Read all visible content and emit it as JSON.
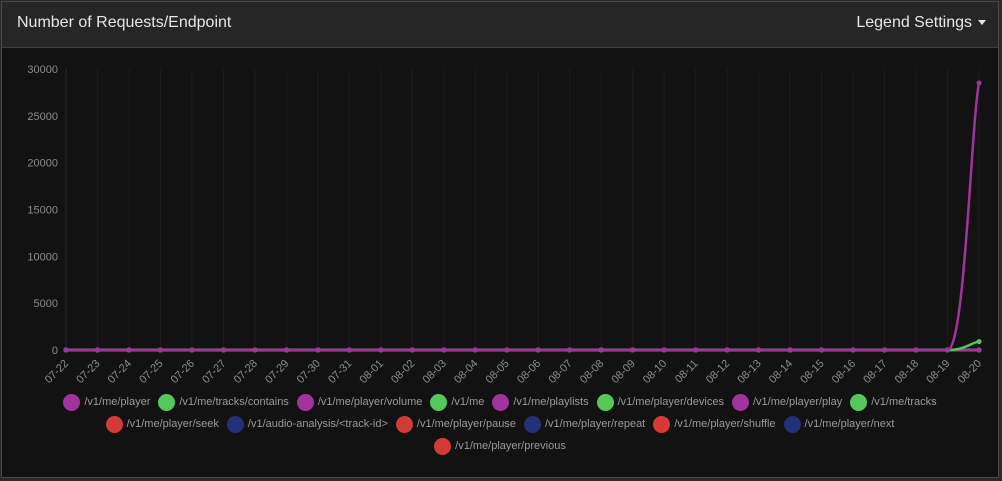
{
  "header": {
    "title": "Number of Requests/Endpoint",
    "legend_settings": "Legend Settings"
  },
  "icons": {
    "legend_caret": "caret-down-icon"
  },
  "colors": {
    "purple": "#a0349c",
    "green": "#55c85a",
    "navy": "#23307a",
    "red": "#d43a36"
  },
  "chart_data": {
    "type": "line",
    "x": [
      "07-22",
      "07-23",
      "07-24",
      "07-25",
      "07-26",
      "07-27",
      "07-28",
      "07-29",
      "07-30",
      "07-31",
      "08-01",
      "08-02",
      "08-03",
      "08-04",
      "08-05",
      "08-06",
      "08-07",
      "08-08",
      "08-09",
      "08-10",
      "08-11",
      "08-12",
      "08-13",
      "08-14",
      "08-15",
      "08-16",
      "08-17",
      "08-18",
      "08-19",
      "08-20"
    ],
    "ylim": [
      0,
      30000
    ],
    "yticks": [
      0,
      5000,
      10000,
      15000,
      20000,
      25000,
      30000
    ],
    "grid": "vertical",
    "legend_position": "bottom",
    "series": [
      {
        "name": "/v1/me/player",
        "color": "#a0349c",
        "values": [
          0,
          0,
          0,
          0,
          0,
          0,
          0,
          0,
          0,
          0,
          0,
          0,
          0,
          0,
          0,
          0,
          0,
          0,
          0,
          0,
          0,
          0,
          0,
          0,
          0,
          0,
          0,
          0,
          0,
          28500
        ]
      },
      {
        "name": "/v1/me/tracks/contains",
        "color": "#55c85a",
        "values": [
          0,
          0,
          0,
          0,
          0,
          0,
          0,
          0,
          0,
          0,
          0,
          0,
          0,
          0,
          0,
          0,
          0,
          0,
          0,
          0,
          0,
          0,
          0,
          0,
          0,
          0,
          0,
          0,
          0,
          900
        ]
      },
      {
        "name": "/v1/me/player/volume",
        "color": "#a0349c",
        "values": [
          0,
          0,
          0,
          0,
          0,
          0,
          0,
          0,
          0,
          0,
          0,
          0,
          0,
          0,
          0,
          0,
          0,
          0,
          0,
          0,
          0,
          0,
          0,
          0,
          0,
          0,
          0,
          0,
          0,
          0
        ]
      },
      {
        "name": "/v1/me",
        "color": "#55c85a",
        "values": [
          0,
          0,
          0,
          0,
          0,
          0,
          0,
          0,
          0,
          0,
          0,
          0,
          0,
          0,
          0,
          0,
          0,
          0,
          0,
          0,
          0,
          0,
          0,
          0,
          0,
          0,
          0,
          0,
          0,
          0
        ]
      },
      {
        "name": "/v1/me/playlists",
        "color": "#a0349c",
        "values": [
          0,
          0,
          0,
          0,
          0,
          0,
          0,
          0,
          0,
          0,
          0,
          0,
          0,
          0,
          0,
          0,
          0,
          0,
          0,
          0,
          0,
          0,
          0,
          0,
          0,
          0,
          0,
          0,
          0,
          0
        ]
      },
      {
        "name": "/v1/me/player/devices",
        "color": "#55c85a",
        "values": [
          0,
          0,
          0,
          0,
          0,
          0,
          0,
          0,
          0,
          0,
          0,
          0,
          0,
          0,
          0,
          0,
          0,
          0,
          0,
          0,
          0,
          0,
          0,
          0,
          0,
          0,
          0,
          0,
          0,
          0
        ]
      },
      {
        "name": "/v1/me/player/play",
        "color": "#a0349c",
        "values": [
          0,
          0,
          0,
          0,
          0,
          0,
          0,
          0,
          0,
          0,
          0,
          0,
          0,
          0,
          0,
          0,
          0,
          0,
          0,
          0,
          0,
          0,
          0,
          0,
          0,
          0,
          0,
          0,
          0,
          0
        ]
      },
      {
        "name": "/v1/me/tracks",
        "color": "#55c85a",
        "values": [
          0,
          0,
          0,
          0,
          0,
          0,
          0,
          0,
          0,
          0,
          0,
          0,
          0,
          0,
          0,
          0,
          0,
          0,
          0,
          0,
          0,
          0,
          0,
          0,
          0,
          0,
          0,
          0,
          0,
          0
        ]
      },
      {
        "name": "/v1/me/player/seek",
        "color": "#d43a36",
        "values": [
          0,
          0,
          0,
          0,
          0,
          0,
          0,
          0,
          0,
          0,
          0,
          0,
          0,
          0,
          0,
          0,
          0,
          0,
          0,
          0,
          0,
          0,
          0,
          0,
          0,
          0,
          0,
          0,
          0,
          0
        ]
      },
      {
        "name": "/v1/audio-analysis/<track-id>",
        "color": "#23307a",
        "values": [
          0,
          0,
          0,
          0,
          0,
          0,
          0,
          0,
          0,
          0,
          0,
          0,
          0,
          0,
          0,
          0,
          0,
          0,
          0,
          0,
          0,
          0,
          0,
          0,
          0,
          0,
          0,
          0,
          0,
          0
        ]
      },
      {
        "name": "/v1/me/player/pause",
        "color": "#d43a36",
        "values": [
          0,
          0,
          0,
          0,
          0,
          0,
          0,
          0,
          0,
          0,
          0,
          0,
          0,
          0,
          0,
          0,
          0,
          0,
          0,
          0,
          0,
          0,
          0,
          0,
          0,
          0,
          0,
          0,
          0,
          0
        ]
      },
      {
        "name": "/v1/me/player/repeat",
        "color": "#23307a",
        "values": [
          0,
          0,
          0,
          0,
          0,
          0,
          0,
          0,
          0,
          0,
          0,
          0,
          0,
          0,
          0,
          0,
          0,
          0,
          0,
          0,
          0,
          0,
          0,
          0,
          0,
          0,
          0,
          0,
          0,
          0
        ]
      },
      {
        "name": "/v1/me/player/shuffle",
        "color": "#d43a36",
        "values": [
          0,
          0,
          0,
          0,
          0,
          0,
          0,
          0,
          0,
          0,
          0,
          0,
          0,
          0,
          0,
          0,
          0,
          0,
          0,
          0,
          0,
          0,
          0,
          0,
          0,
          0,
          0,
          0,
          0,
          0
        ]
      },
      {
        "name": "/v1/me/player/next",
        "color": "#23307a",
        "values": [
          0,
          0,
          0,
          0,
          0,
          0,
          0,
          0,
          0,
          0,
          0,
          0,
          0,
          0,
          0,
          0,
          0,
          0,
          0,
          0,
          0,
          0,
          0,
          0,
          0,
          0,
          0,
          0,
          0,
          0
        ]
      },
      {
        "name": "/v1/me/player/previous",
        "color": "#d43a36",
        "values": [
          0,
          0,
          0,
          0,
          0,
          0,
          0,
          0,
          0,
          0,
          0,
          0,
          0,
          0,
          0,
          0,
          0,
          0,
          0,
          0,
          0,
          0,
          0,
          0,
          0,
          0,
          0,
          0,
          0,
          0
        ]
      }
    ]
  }
}
